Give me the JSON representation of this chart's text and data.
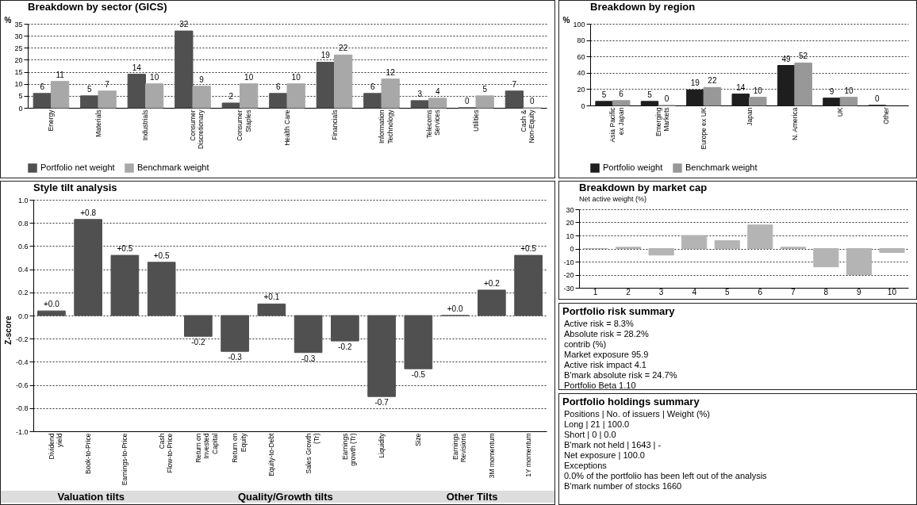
{
  "chart_data": [
    {
      "type": "bar",
      "title": "Breakdown by sector (GICS)",
      "ylabel": "%",
      "categories": [
        "Energy",
        "Materials",
        "Industrials",
        "Consumer Discretionary",
        "Consumer Staples",
        "Health Care",
        "Financials",
        "Information Technology",
        "Telecoms Services",
        "Utilities",
        "Cash & Non-Equity"
      ],
      "series": [
        {
          "name": "Portfolio net weight",
          "color": "#505050",
          "values": [
            6,
            5,
            14,
            32,
            2,
            6,
            19,
            6,
            3,
            0,
            7
          ]
        },
        {
          "name": "Benchmark weight",
          "color": "#a8a8a8",
          "values": [
            11,
            7,
            10,
            9,
            10,
            10,
            22,
            12,
            4,
            5,
            0
          ]
        }
      ],
      "ylim": [
        0,
        35
      ],
      "yticks": [
        0,
        5,
        10,
        15,
        20,
        25,
        30,
        35
      ],
      "grid": "y",
      "legend": "bottom",
      "data_labels": true
    },
    {
      "type": "bar",
      "title": "Breakdown by region",
      "ylabel": "%",
      "categories": [
        "Asia Pacific ex Japan",
        "Emerging Markets",
        "Europe ex UK",
        "Japan",
        "N. America",
        "UK",
        "Other"
      ],
      "series": [
        {
          "name": "Portfolio weight",
          "color": "#1e1e1e",
          "values": [
            5,
            5,
            19,
            14,
            49,
            9,
            0
          ]
        },
        {
          "name": "Benchmark weight",
          "color": "#989898",
          "values": [
            6,
            0,
            22,
            10,
            52,
            10,
            null
          ]
        }
      ],
      "ylim": [
        0,
        100
      ],
      "yticks": [
        0,
        20,
        40,
        60,
        80,
        100
      ],
      "grid": "y",
      "legend": "bottom",
      "data_labels": true
    },
    {
      "type": "bar",
      "title": "Style tilt analysis",
      "ylabel": "Z-score",
      "categories": [
        "Dividend yield",
        "Book-to-Price",
        "Earnings-to-Price",
        "Cash Flow-to-Price",
        "Return on Invested Capital",
        "Return on Equity",
        "Equity-to-Debt",
        "Sales Growth (Tr)",
        "Earnings growth (Tr)",
        "Liquidity",
        "Size",
        "Earnings Revisions",
        "3M momentum",
        "1Y momentum"
      ],
      "values": [
        0.04,
        0.83,
        0.52,
        0.46,
        -0.18,
        -0.31,
        0.1,
        -0.32,
        -0.22,
        -0.7,
        -0.46,
        0,
        0.22,
        0.52
      ],
      "value_labels": [
        "+0.0",
        "+0.8",
        "+0.5",
        "+0.5",
        "-0.2",
        "-0.3",
        "+0.1",
        "-0.3",
        "-0.2",
        "-0.7",
        "-0.5",
        "+0.0",
        "+0.2",
        "+0.5"
      ],
      "color": "#505050",
      "ylim": [
        -1,
        1
      ],
      "yticks": [
        {
          "value": -1,
          "label": "-1.0"
        },
        {
          "value": -0.8,
          "label": "-0.8"
        },
        {
          "value": -0.6,
          "label": "-0.6"
        },
        {
          "value": -0.4,
          "label": "-0.4"
        },
        {
          "value": -0.2,
          "label": "-0.2"
        },
        {
          "value": 0,
          "label": "0.0"
        },
        {
          "value": 0.2,
          "label": "0.2"
        },
        {
          "value": 0.4,
          "label": "0.4"
        },
        {
          "value": 0.6,
          "label": "0.6"
        },
        {
          "value": 0.8,
          "label": "0.8"
        },
        {
          "value": 1,
          "label": "1.0"
        }
      ],
      "grid": "y",
      "annotations": [
        "Valuation tilts",
        "Quality/Growth tilts",
        "Other Tilts"
      ]
    },
    {
      "type": "bar",
      "title": "Breakdown by market cap",
      "subtitle": "Net active weight (%)",
      "categories": [
        "1",
        "2",
        "3",
        "4",
        "5",
        "6",
        "7",
        "8",
        "9",
        "10"
      ],
      "values": [
        0,
        1,
        -5,
        10,
        6,
        18,
        1,
        -14,
        -20,
        -3
      ],
      "color": "#b4b4b4",
      "ylim": [
        -30,
        30
      ],
      "yticks": [
        -30,
        -20,
        -10,
        0,
        10,
        20,
        30
      ],
      "grid": "y"
    },
    {
      "type": "other",
      "title": "Portfolio risk summary",
      "annotations": [
        "Active risk = 8.3%",
        "Absolute risk = 28.2%",
        "contrib (%)",
        "Market exposure 95.9",
        "Active risk impact 4.1",
        "B'mark absolute risk = 24.7%",
        "Portfolio Beta 1.10"
      ]
    },
    {
      "type": "other",
      "title": "Portfolio holdings summary",
      "annotations": [
        "Positions | No. of issuers | Weight (%)",
        "Long | 21 | 100.0",
        "Short | 0 | 0.0",
        "B'mark not held | 1643 | -",
        "Net exposure | 100.0",
        "Exceptions",
        "0.0% of the portfolio has been left out of the analysis",
        "B'mark number of stocks 1660"
      ]
    }
  ]
}
